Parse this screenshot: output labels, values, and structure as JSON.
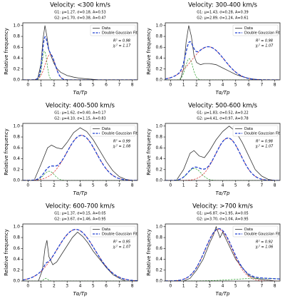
{
  "chart_data": [
    {
      "type": "line",
      "title": "Velocity: <300 km/s",
      "xlabel": "Tα/Tp",
      "ylabel": "Relative frequency",
      "xlim": [
        -0.4,
        8.4
      ],
      "xticks": [
        0,
        1,
        2,
        3,
        4,
        5,
        6,
        7,
        8
      ],
      "ylim": [
        0,
        1.05
      ],
      "yticks": [
        {
          "value": 0,
          "label": "0.0"
        },
        0.2,
        0.4,
        0.6,
        0.8,
        {
          "value": 1,
          "label": "1.0"
        }
      ],
      "r2": "R² = 0.98",
      "chi2": "χᵣ² = 1.17",
      "series": [
        {
          "name": "Data",
          "color": "#333333",
          "x": [
            0.5,
            0.75,
            1.0,
            1.15,
            1.3,
            1.45,
            1.6,
            1.8,
            2.0,
            2.25,
            2.5,
            3,
            3.5,
            4,
            4.5,
            5,
            5.5
          ],
          "values": [
            0,
            0.03,
            0.3,
            0.75,
            1.0,
            0.8,
            0.55,
            0.42,
            0.3,
            0.2,
            0.14,
            0.08,
            0.05,
            0.03,
            0.02,
            0.01,
            0
          ]
        },
        {
          "name": "Double Gaussian Fit",
          "color": "#1f3fcf",
          "components": [
            {
              "label": "G1: μ=1.27, σ=0.18, A=0.53",
              "mu": 1.27,
              "sigma": 0.18,
              "amplitude": 0.53,
              "color": "#2ca02c"
            },
            {
              "label": "G2: μ=1.70, σ=0.38, A=0.47",
              "mu": 1.7,
              "sigma": 0.38,
              "amplitude": 0.47,
              "color": "#d62728"
            }
          ]
        }
      ]
    },
    {
      "type": "line",
      "title": "Velocity: 300-400 km/s",
      "xlabel": "Tα/Tp",
      "ylabel": "Relative frequency",
      "xlim": [
        -0.4,
        8.4
      ],
      "xticks": [
        0,
        1,
        2,
        3,
        4,
        5,
        6,
        7,
        8
      ],
      "ylim": [
        0,
        1.05
      ],
      "yticks": [
        {
          "value": 0,
          "label": "0.0"
        },
        0.2,
        0.4,
        0.6,
        0.8,
        {
          "value": 1,
          "label": "1.0"
        }
      ],
      "r2": "R² = 0.98",
      "chi2": "χᵣ² = 1.07",
      "series": [
        {
          "name": "Data",
          "color": "#333333",
          "x": [
            0.75,
            1.0,
            1.2,
            1.4,
            1.6,
            1.8,
            2.0,
            2.3,
            2.6,
            3.0,
            3.5,
            4.0,
            4.5,
            5.0,
            5.5,
            6.0,
            6.5,
            7
          ],
          "values": [
            0,
            0.2,
            0.7,
            1.0,
            0.8,
            0.45,
            0.32,
            0.28,
            0.3,
            0.3,
            0.28,
            0.22,
            0.16,
            0.1,
            0.06,
            0.03,
            0.01,
            0
          ]
        },
        {
          "name": "Double Gaussian Fit",
          "color": "#1f3fcf",
          "components": [
            {
              "label": "G1: μ=1.43, σ=0.28, A=0.39",
              "mu": 1.43,
              "sigma": 0.28,
              "amplitude": 0.39,
              "color": "#2ca02c"
            },
            {
              "label": "G2: μ=2.89, σ=1.24, A=0.61",
              "mu": 2.89,
              "sigma": 1.24,
              "amplitude": 0.61,
              "color": "#d62728"
            }
          ]
        }
      ]
    },
    {
      "type": "line",
      "title": "Velocity: 400-500 km/s",
      "xlabel": "Tα/Tp",
      "ylabel": "Relative frequency",
      "xlim": [
        -0.4,
        8.4
      ],
      "xticks": [
        0,
        1,
        2,
        3,
        4,
        5,
        6,
        7,
        8
      ],
      "ylim": [
        0,
        1.05
      ],
      "yticks": [
        {
          "value": 0,
          "label": "0.0"
        },
        0.2,
        0.4,
        0.6,
        0.8,
        {
          "value": 1,
          "label": "1.0"
        }
      ],
      "r2": "R² = 0.99",
      "chi2": "χᵣ² = 1.08",
      "series": [
        {
          "name": "Data",
          "color": "#333333",
          "x": [
            0.5,
            1,
            1.5,
            1.8,
            2.2,
            2.6,
            3,
            3.5,
            4,
            4.5,
            5,
            5.5,
            6,
            6.5,
            7,
            7.5,
            8
          ],
          "values": [
            0.02,
            0.3,
            0.6,
            0.65,
            0.6,
            0.58,
            0.7,
            0.88,
            0.97,
            0.9,
            0.75,
            0.55,
            0.35,
            0.18,
            0.07,
            0.02,
            0
          ]
        },
        {
          "name": "Double Gaussian Fit",
          "color": "#1f3fcf",
          "components": [
            {
              "label": "G1: μ=1.62, σ=0.40, A=0.17",
              "mu": 1.62,
              "sigma": 0.4,
              "amplitude": 0.17,
              "color": "#2ca02c"
            },
            {
              "label": "G2: μ=4.10, σ=1.15, A=0.83",
              "mu": 4.1,
              "sigma": 1.15,
              "amplitude": 0.83,
              "color": "#d62728"
            }
          ]
        }
      ]
    },
    {
      "type": "line",
      "title": "Velocity: 500-600 km/s",
      "xlabel": "Tα/Tp",
      "ylabel": "Relative frequency",
      "xlim": [
        -0.4,
        8.4
      ],
      "xticks": [
        0,
        1,
        2,
        3,
        4,
        5,
        6,
        7,
        8
      ],
      "ylim": [
        0,
        1.05
      ],
      "yticks": [
        {
          "value": 0,
          "label": "0.0"
        },
        0.2,
        0.4,
        0.6,
        0.8,
        {
          "value": 1,
          "label": "1.0"
        }
      ],
      "r2": "R² = 0.98",
      "chi2": "χᵣ² = 1.07",
      "series": [
        {
          "name": "Data",
          "color": "#333333",
          "x": [
            0.5,
            1,
            1.5,
            1.8,
            2.2,
            2.6,
            3,
            3.5,
            4,
            4.5,
            5,
            5.5,
            6,
            6.5,
            7,
            7.5,
            8
          ],
          "values": [
            0.02,
            0.2,
            0.5,
            0.55,
            0.45,
            0.42,
            0.55,
            0.75,
            0.9,
            1.0,
            0.9,
            0.7,
            0.45,
            0.2,
            0.08,
            0.02,
            0
          ]
        },
        {
          "name": "Double Gaussian Fit",
          "color": "#1f3fcf",
          "components": [
            {
              "label": "G1: μ=1.83, σ=0.52, A=0.22",
              "mu": 1.83,
              "sigma": 0.52,
              "amplitude": 0.22,
              "color": "#2ca02c"
            },
            {
              "label": "G2: μ=4.41, σ=0.97, A=0.78",
              "mu": 4.41,
              "sigma": 0.97,
              "amplitude": 0.78,
              "color": "#d62728"
            }
          ]
        }
      ]
    },
    {
      "type": "line",
      "title": "Velocity: 600-700 km/s",
      "xlabel": "Tα/Tp",
      "ylabel": "Relative frequency",
      "xlim": [
        -0.4,
        8.4
      ],
      "xticks": [
        0,
        1,
        2,
        3,
        4,
        5,
        6,
        7,
        8
      ],
      "ylim": [
        0,
        1.05
      ],
      "yticks": [
        {
          "value": 0,
          "label": "0.0"
        },
        0.2,
        0.4,
        0.6,
        0.8,
        {
          "value": 1,
          "label": "1.0"
        }
      ],
      "r2": "R² = 0.95",
      "chi2": "χᵣ² = 1.07",
      "series": [
        {
          "name": "Data",
          "color": "#333333",
          "x": [
            0.8,
            1.1,
            1.3,
            1.45,
            1.6,
            1.9,
            2.2,
            2.6,
            3,
            3.4,
            3.8,
            4.2,
            4.6,
            5,
            5.5,
            6,
            6.5,
            7,
            7.5
          ],
          "values": [
            0,
            0.2,
            0.6,
            0.75,
            0.45,
            0.3,
            0.35,
            0.5,
            0.65,
            0.8,
            0.9,
            0.82,
            0.7,
            0.55,
            0.4,
            0.25,
            0.12,
            0.05,
            0
          ]
        },
        {
          "name": "Double Gaussian Fit",
          "color": "#1f3fcf",
          "components": [
            {
              "label": "G1: μ=1.37, σ=0.15, A=0.05",
              "mu": 1.37,
              "sigma": 0.15,
              "amplitude": 0.05,
              "color": "#2ca02c"
            },
            {
              "label": "G2: μ=3.67, σ=1.46, A=0.95",
              "mu": 3.67,
              "sigma": 1.46,
              "amplitude": 0.95,
              "color": "#d62728"
            }
          ]
        }
      ]
    },
    {
      "type": "line",
      "title": "Velocity: >700 km/s",
      "xlabel": "Tα/Tp",
      "ylabel": "Relative frequency",
      "xlim": [
        -0.4,
        8.4
      ],
      "xticks": [
        0,
        1,
        2,
        3,
        4,
        5,
        6,
        7,
        8
      ],
      "ylim": [
        0,
        1.05
      ],
      "yticks": [
        {
          "value": 0,
          "label": "0.0"
        },
        0.2,
        0.4,
        0.6,
        0.8,
        {
          "value": 1,
          "label": "1.0"
        }
      ],
      "r2": "R² = 0.92",
      "chi2": "χᵣ² = 1.06",
      "series": [
        {
          "name": "Data",
          "color": "#333333",
          "x": [
            1,
            1.5,
            2,
            2.5,
            3,
            3.3,
            3.5,
            3.8,
            4,
            4.3,
            4.6,
            5,
            5.5,
            6,
            6.5,
            7,
            7.5,
            8
          ],
          "values": [
            0,
            0.05,
            0.2,
            0.4,
            0.7,
            0.85,
            1.0,
            0.8,
            0.9,
            0.75,
            0.6,
            0.4,
            0.25,
            0.1,
            0.05,
            0.03,
            0.02,
            0
          ]
        },
        {
          "name": "Double Gaussian Fit",
          "color": "#1f3fcf",
          "components": [
            {
              "label": "G1: μ=6.87, σ=1.95, A=0.05",
              "mu": 6.87,
              "sigma": 1.95,
              "amplitude": 0.05,
              "color": "#2ca02c"
            },
            {
              "label": "G2: μ=3.70, σ=1.04, A=0.95",
              "mu": 3.7,
              "sigma": 1.04,
              "amplitude": 0.95,
              "color": "#d62728"
            }
          ]
        }
      ]
    }
  ]
}
